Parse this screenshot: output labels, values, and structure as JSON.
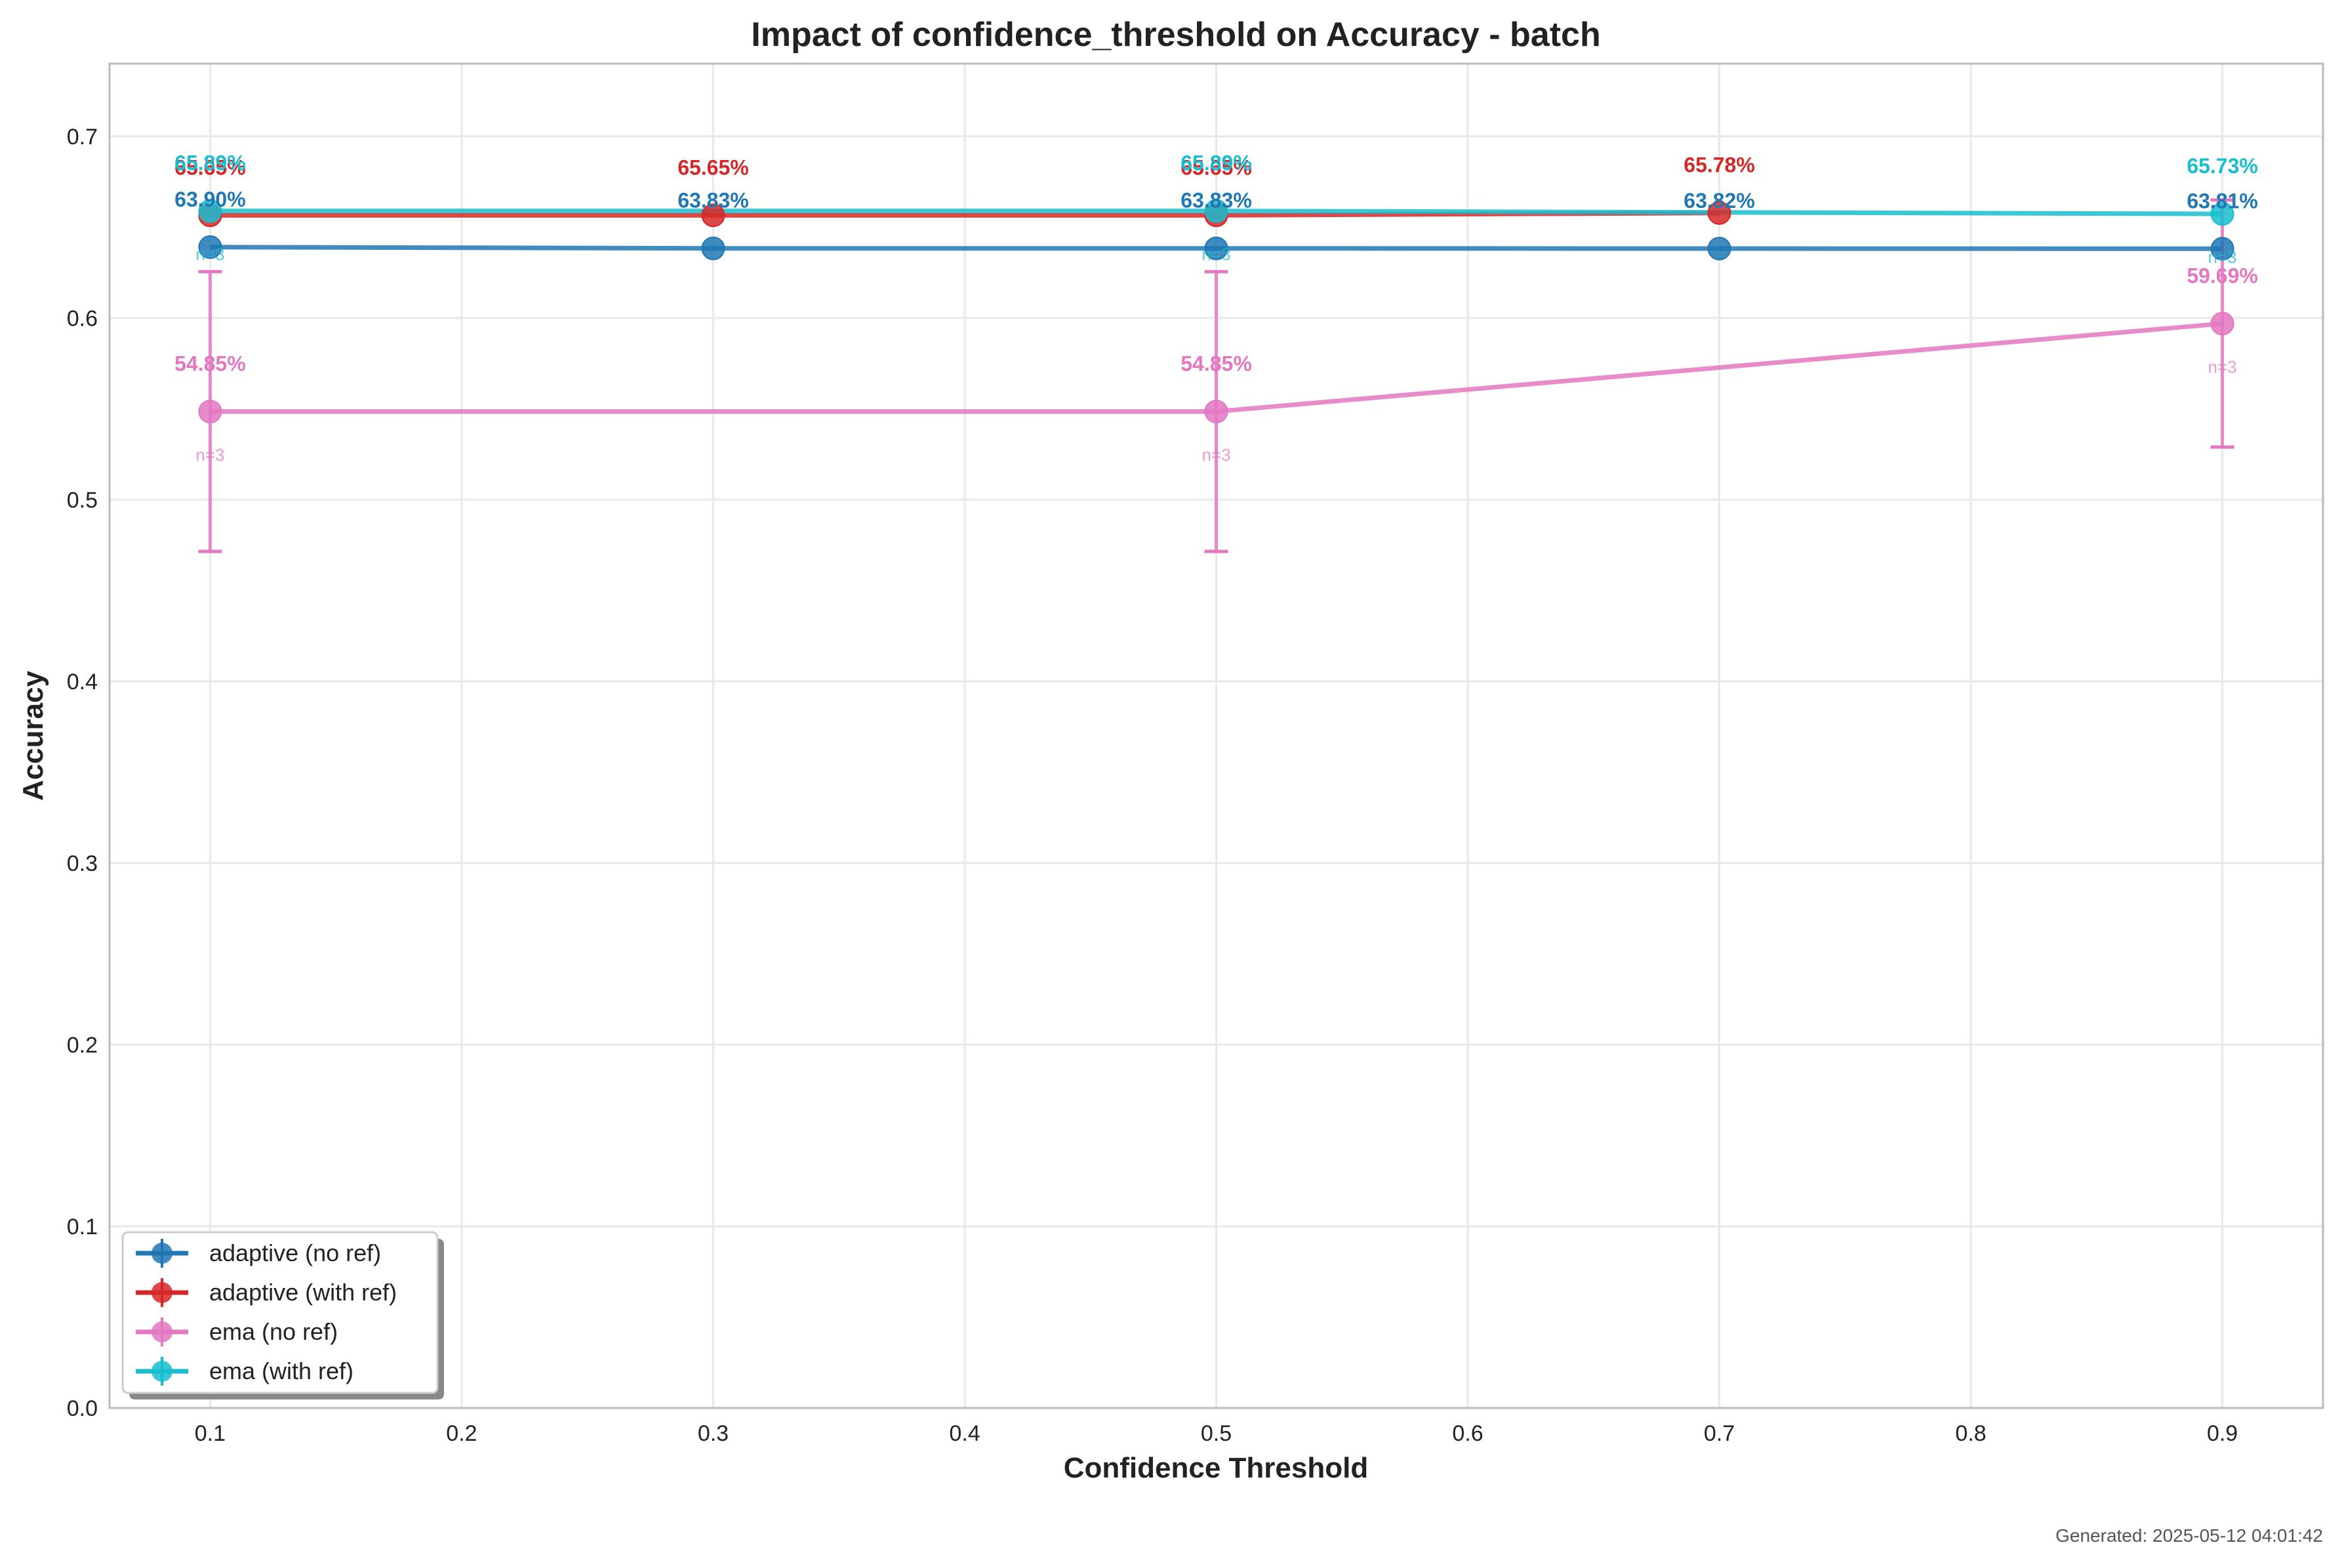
{
  "chart_data": {
    "type": "line",
    "title": "Impact of confidence_threshold on Accuracy - batch",
    "xlabel": "Confidence Threshold",
    "ylabel": "Accuracy",
    "xlim": [
      0.06,
      0.94
    ],
    "ylim": [
      0.0,
      0.74
    ],
    "x_ticks": [
      "0.1",
      "0.2",
      "0.3",
      "0.4",
      "0.5",
      "0.6",
      "0.7",
      "0.8",
      "0.9"
    ],
    "y_ticks": [
      "0.0",
      "0.1",
      "0.2",
      "0.3",
      "0.4",
      "0.5",
      "0.6",
      "0.7"
    ],
    "grid": true,
    "legend_position": "lower-left",
    "series": [
      {
        "name": "adaptive (no ref)",
        "color": "#1f77b4",
        "points": [
          {
            "x": 0.1,
            "y": 0.639,
            "label": "63.90%",
            "n_label": ""
          },
          {
            "x": 0.3,
            "y": 0.6383,
            "label": "63.83%",
            "n_label": ""
          },
          {
            "x": 0.5,
            "y": 0.6383,
            "label": "63.83%",
            "n_label": ""
          },
          {
            "x": 0.7,
            "y": 0.6382,
            "label": "63.82%",
            "n_label": ""
          },
          {
            "x": 0.9,
            "y": 0.6381,
            "label": "63.81%",
            "n_label": ""
          }
        ]
      },
      {
        "name": "adaptive (with ref)",
        "color": "#d62728",
        "points": [
          {
            "x": 0.1,
            "y": 0.6565,
            "label": "65.65%",
            "n_label": ""
          },
          {
            "x": 0.3,
            "y": 0.6565,
            "label": "65.65%",
            "n_label": ""
          },
          {
            "x": 0.5,
            "y": 0.6565,
            "label": "65.65%",
            "n_label": ""
          },
          {
            "x": 0.7,
            "y": 0.6578,
            "label": "65.78%",
            "n_label": ""
          }
        ]
      },
      {
        "name": "ema (no ref)",
        "color": "#e377c2",
        "points": [
          {
            "x": 0.1,
            "y": 0.5485,
            "err": 0.077,
            "label": "54.85%",
            "n_label": "n=3"
          },
          {
            "x": 0.5,
            "y": 0.5485,
            "err": 0.077,
            "label": "54.85%",
            "n_label": "n=3"
          },
          {
            "x": 0.9,
            "y": 0.5969,
            "err": 0.068,
            "label": "59.69%",
            "n_label": "n=3"
          }
        ]
      },
      {
        "name": "ema (with ref)",
        "color": "#17becf",
        "points": [
          {
            "x": 0.1,
            "y": 0.6589,
            "label": "65.89%",
            "n_label": "n=3"
          },
          {
            "x": 0.5,
            "y": 0.6589,
            "label": "65.89%",
            "n_label": "n=3"
          },
          {
            "x": 0.9,
            "y": 0.6573,
            "label": "65.73%",
            "n_label": "n=3"
          }
        ]
      }
    ]
  },
  "footer": {
    "generated": "Generated: 2025-05-12 04:01:42"
  }
}
